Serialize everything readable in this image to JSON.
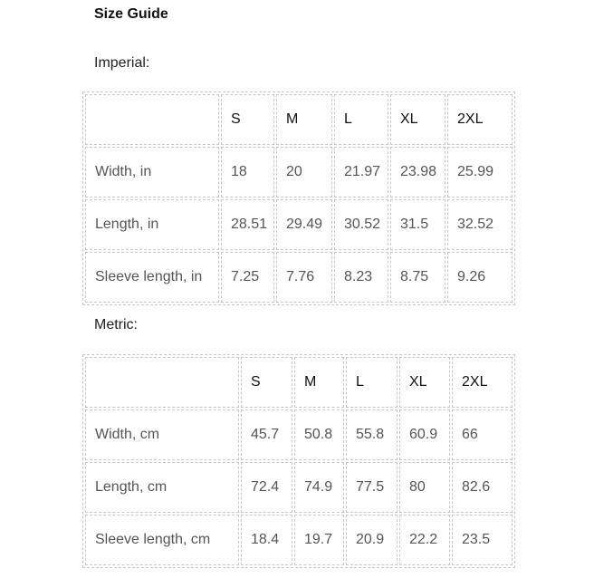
{
  "title": "Size Guide",
  "imperial": {
    "label": "Imperial:",
    "headers": [
      "",
      "S",
      "M",
      "L",
      "XL",
      "2XL"
    ],
    "rows": [
      [
        "Width, in",
        "18",
        "20",
        "21.97",
        "23.98",
        "25.99"
      ],
      [
        "Length, in",
        "28.51",
        "29.49",
        "30.52",
        "31.5",
        "32.52"
      ],
      [
        "Sleeve length, in",
        "7.25",
        "7.76",
        "8.23",
        "8.75",
        "9.26"
      ]
    ]
  },
  "metric": {
    "label": "Metric:",
    "headers": [
      "",
      "S",
      "M",
      "L",
      "XL",
      "2XL"
    ],
    "rows": [
      [
        "Width, cm",
        "45.7",
        "50.8",
        "55.8",
        "60.9",
        "66"
      ],
      [
        "Length, cm",
        "72.4",
        "74.9",
        "77.5",
        "80",
        "82.6"
      ],
      [
        "Sleeve length, cm",
        "18.4",
        "19.7",
        "20.9",
        "22.2",
        "23.5"
      ]
    ]
  }
}
